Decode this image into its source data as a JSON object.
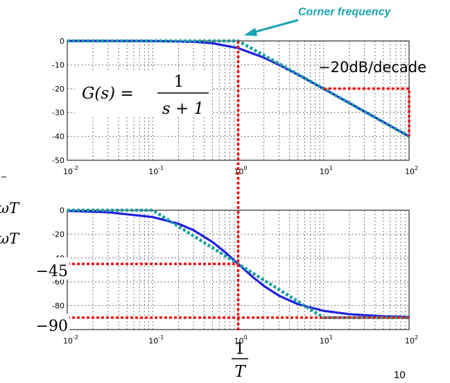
{
  "chart_data": [
    {
      "type": "line",
      "xscale": "log",
      "xlim": [
        0.01,
        100
      ],
      "ylim": [
        -50,
        0
      ],
      "xticks": [
        {
          "base": "10",
          "exp": "-2"
        },
        {
          "base": "10",
          "exp": "-1"
        },
        {
          "base": "10",
          "exp": "0"
        },
        {
          "base": "10",
          "exp": "1"
        },
        {
          "base": "10",
          "exp": "2"
        }
      ],
      "yticks": [
        "0",
        "-10",
        "-20",
        "-30",
        "-40",
        "-50"
      ],
      "grid": true,
      "series": [
        {
          "style": "exact (solid blue)",
          "color": "#1f1fe0",
          "x": [
            0.01,
            0.1,
            0.3,
            0.5,
            1,
            2,
            3,
            5,
            10,
            20,
            50,
            100
          ],
          "y": [
            0,
            -0.04,
            -0.37,
            -0.97,
            -3.01,
            -6.99,
            -10.0,
            -14.15,
            -20.04,
            -26.03,
            -33.98,
            -40.0
          ]
        },
        {
          "style": "asymptote (dotted teal)",
          "color": "#1a9e9e",
          "x": [
            0.01,
            1,
            100
          ],
          "y": [
            0,
            0,
            -40
          ]
        }
      ],
      "annotations": {
        "corner": "Corner frequency",
        "slope": "−20dB/decade",
        "equation": {
          "lhs": "G(s) =",
          "num": "1",
          "den": "s + 1"
        }
      }
    },
    {
      "type": "line",
      "xscale": "log",
      "xlim": [
        0.01,
        100
      ],
      "ylim": [
        -100,
        0
      ],
      "xticks": [
        {
          "base": "10",
          "exp": "-2"
        },
        {
          "base": "10",
          "exp": "-1"
        },
        {
          "base": "10",
          "exp": "0"
        },
        {
          "base": "10",
          "exp": "1"
        },
        {
          "base": "10",
          "exp": "2"
        }
      ],
      "yticks": [
        "0",
        "-20",
        "-40",
        "-60",
        "-80",
        "-100"
      ],
      "grid": true,
      "series": [
        {
          "style": "exact (solid blue)",
          "color": "#1f1fe0",
          "x": [
            0.01,
            0.03,
            0.1,
            0.2,
            0.3,
            0.5,
            0.7,
            1,
            1.5,
            2,
            3,
            5,
            10,
            20,
            50,
            100
          ],
          "y": [
            -0.6,
            -1.7,
            -5.7,
            -11.3,
            -16.7,
            -26.6,
            -35.0,
            -45,
            -56.3,
            -63.4,
            -71.6,
            -78.7,
            -84.3,
            -87.1,
            -88.9,
            -89.4
          ]
        },
        {
          "style": "asymptote (dotted teal)",
          "color": "#1a9e9e",
          "x": [
            0.01,
            0.1,
            10,
            100
          ],
          "y": [
            0,
            0,
            -90,
            -90
          ]
        }
      ],
      "annotations": {
        "minus45": "−45",
        "minus90": "−90",
        "left_a": "ωT",
        "left_b": "ωT"
      }
    }
  ],
  "xaxis_label": {
    "num": "1",
    "den": "T"
  },
  "page_number": "10",
  "colors": {
    "exact": "#1f1fe0",
    "asymptote": "#1a9e9e",
    "guide": "#ee1111",
    "arrow": "#1aa3b5"
  }
}
